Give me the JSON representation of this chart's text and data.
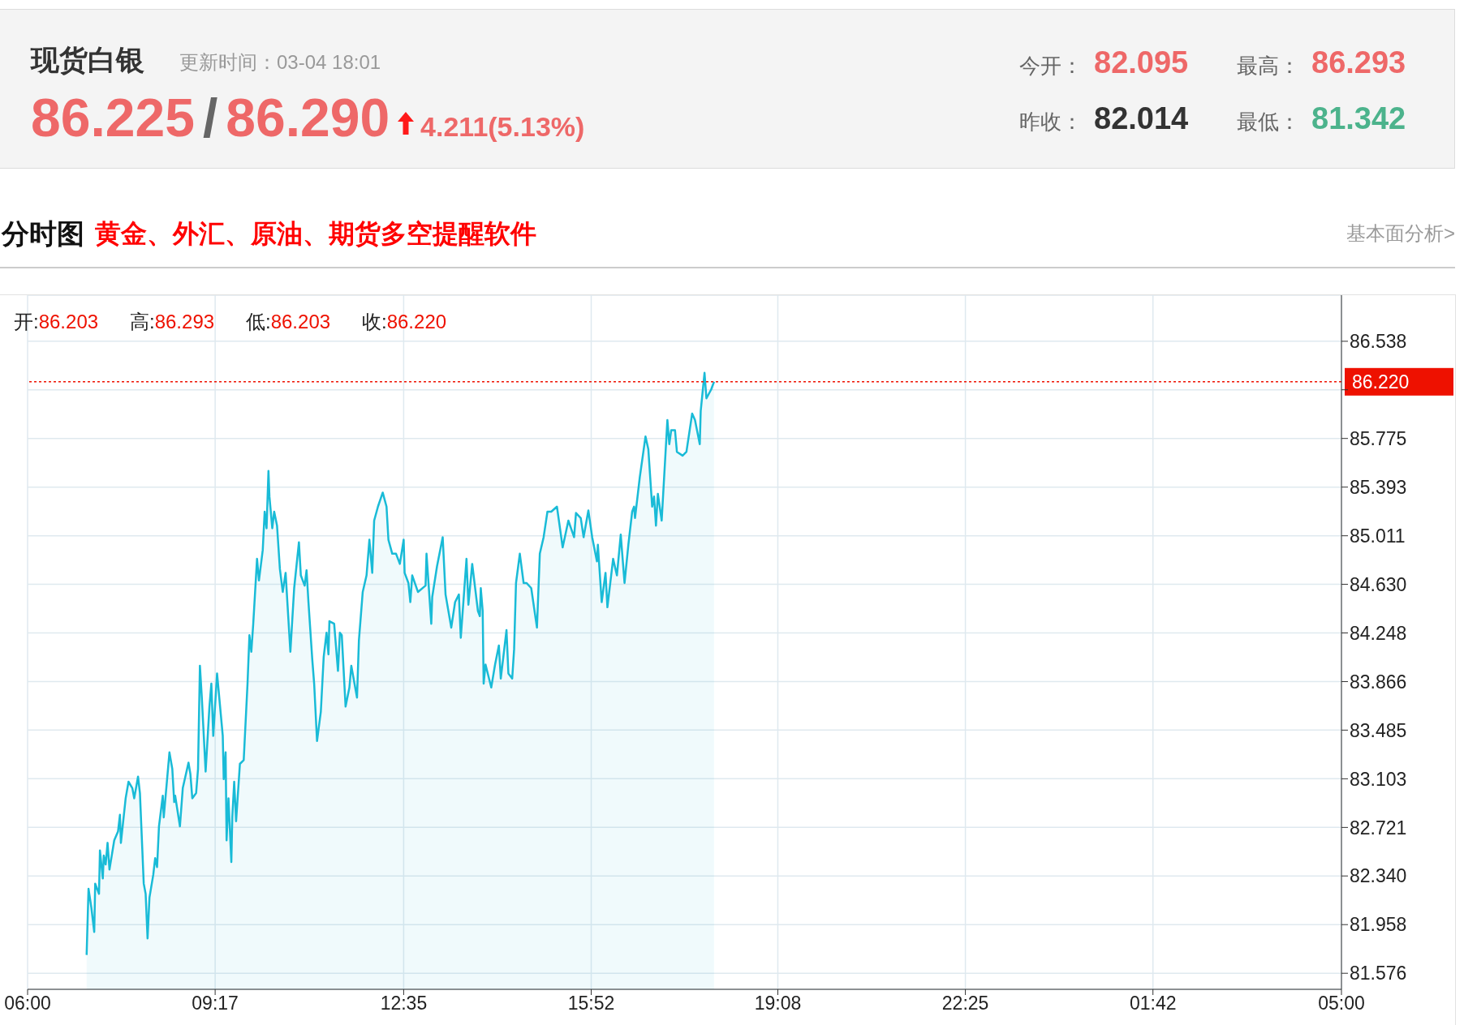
{
  "chart_data": [
    {
      "type": "other",
      "title": "现货白银",
      "subtitle": "更新时间：03-04 18:01",
      "annotations": [
        "86.225",
        "/",
        "86.290",
        "4.211(5.13%)",
        "今开：",
        "82.095",
        "昨收：",
        "82.014",
        "最高：",
        "86.293",
        "最低：",
        "81.342"
      ]
    },
    {
      "type": "area",
      "title": "分时图",
      "annotations": [
        "黄金、外汇、原油、期货多空提醒软件",
        "基本面分析>",
        "开:",
        "86.203",
        "高:",
        "86.293",
        "低:",
        "86.203",
        "收:",
        "86.220"
      ],
      "x": [
        "--03-04T07:02",
        "--03-04T07:04",
        "--03-04T07:07",
        "--03-04T07:10",
        "--03-04T07:11",
        "--03-04T07:15",
        "--03-04T07:16",
        "--03-04T07:19",
        "--03-04T07:20",
        "--03-04T07:22",
        "--03-04T07:24",
        "--03-04T07:26",
        "--03-04T07:31",
        "--03-04T07:35",
        "--03-04T07:37",
        "--03-04T07:38",
        "--03-04T07:43",
        "--03-04T07:46",
        "--03-04T07:50",
        "--03-04T07:52",
        "--03-04T07:56",
        "--03-04T07:58",
        "--03-04T08:02",
        "--03-04T08:04",
        "--03-04T08:06",
        "--03-04T08:08",
        "--03-04T08:12",
        "--03-04T08:14",
        "--03-04T08:16",
        "--03-04T08:18",
        "--03-04T08:22",
        "--03-04T08:23",
        "--03-04T08:29",
        "--03-04T08:32",
        "--03-04T08:34",
        "--03-04T08:35",
        "--03-04T08:40",
        "--03-04T08:43",
        "--03-04T08:49",
        "--03-04T08:51",
        "--03-04T08:53",
        "--03-04T08:57",
        "--03-04T08:59",
        "--03-04T09:01",
        "--03-04T09:03",
        "--03-04T09:07",
        "--03-04T09:11",
        "--03-04T09:13",
        "--03-04T09:15",
        "--03-04T09:19",
        "--03-04T09:25",
        "--03-04T09:26",
        "--03-04T09:28",
        "--03-04T09:29",
        "--03-04T09:31",
        "--03-04T09:34",
        "--03-04T09:35",
        "--03-04T09:37",
        "--03-04T09:39",
        "--03-04T09:43",
        "--03-04T09:47",
        "--03-04T09:51",
        "--03-04T09:53",
        "--03-04T09:55",
        "--03-04T09:57",
        "--03-04T10:01",
        "--03-04T10:03",
        "--03-04T10:07",
        "--03-04T10:09",
        "--03-04T10:11",
        "--03-04T10:13",
        "--03-04T10:14",
        "--03-04T10:17",
        "--03-04T10:19",
        "--03-04T10:22",
        "--03-04T10:25",
        "--03-04T10:28",
        "--03-04T10:31",
        "--03-04T10:36",
        "--03-04T10:40",
        "--03-04T10:45",
        "--03-04T10:47",
        "--03-04T10:51",
        "--03-04T10:53",
        "--03-04T10:55",
        "--03-04T10:59",
        "--03-04T11:01",
        "--03-04T11:04",
        "--03-04T11:08",
        "--03-04T11:11",
        "--03-04T11:14",
        "--03-04T11:16",
        "--03-04T11:17",
        "--03-04T11:22",
        "--03-04T11:26",
        "--03-04T11:28",
        "--03-04T11:30",
        "--03-04T11:34",
        "--03-04T11:38",
        "--03-04T11:40",
        "--03-04T11:46",
        "--03-04T11:48",
        "--03-04T11:52",
        "--03-04T11:56",
        "--03-04T11:59",
        "--03-04T12:02",
        "--03-04T12:04",
        "--03-04T12:08",
        "--03-04T12:13",
        "--03-04T12:17",
        "--03-04T12:19",
        "--03-04T12:23",
        "--03-04T12:27",
        "--03-04T12:31",
        "--03-04T12:35",
        "--03-04T12:36",
        "--03-04T12:40",
        "--03-04T12:42",
        "--03-04T12:44",
        "--03-04T12:50",
        "--03-04T12:58",
        "--03-04T12:59",
        "--03-04T13:04",
        "--03-04T13:05",
        "--03-04T13:10",
        "--03-04T13:16",
        "--03-04T13:19",
        "--03-04T13:25",
        "--03-04T13:29",
        "--03-04T13:33",
        "--03-04T13:35",
        "--03-04T13:41",
        "--03-04T13:43",
        "--03-04T13:47",
        "--03-04T13:53",
        "--03-04T13:55",
        "--03-04T13:56",
        "--03-04T13:58",
        "--03-04T13:59",
        "--03-04T14:01",
        "--03-04T14:07",
        "--03-04T14:11",
        "--03-04T14:15",
        "--03-04T14:17",
        "--03-04T14:23",
        "--03-04T14:25",
        "--03-04T14:29",
        "--03-04T14:31",
        "--03-04T14:33",
        "--03-04T14:37",
        "--03-04T14:41",
        "--03-04T14:44",
        "--03-04T14:49",
        "--03-04T14:55",
        "--03-04T14:58",
        "--03-04T15:02",
        "--03-04T15:06",
        "--03-04T15:10",
        "--03-04T15:16",
        "--03-04T15:22",
        "--03-04T15:28",
        "--03-04T15:34",
        "--03-04T15:36",
        "--03-04T15:41",
        "--03-04T15:44",
        "--03-04T15:49",
        "--03-04T15:53",
        "--03-04T15:58",
        "--03-04T15:59",
        "--03-04T16:03",
        "--03-04T16:07",
        "--03-04T16:09",
        "--03-04T16:15",
        "--03-04T16:19",
        "--03-04T16:23",
        "--03-04T16:27",
        "--03-04T16:31",
        "--03-04T16:35",
        "--03-04T16:37",
        "--03-04T16:38",
        "--03-04T16:43",
        "--03-04T16:49",
        "--03-04T16:52",
        "--03-04T16:56",
        "--03-04T16:58",
        "--03-04T17:00",
        "--03-04T17:02",
        "--03-04T17:06",
        "--03-04T17:12",
        "--03-04T17:14",
        "--03-04T17:16",
        "--03-04T17:20",
        "--03-04T17:22",
        "--03-04T17:28",
        "--03-04T17:32",
        "--03-04T17:38",
        "--03-04T17:41",
        "--03-04T17:46",
        "--03-04T17:47",
        "--03-04T17:51",
        "--03-04T17:53",
        "--03-04T17:58",
        "--03-04T18:01"
      ],
      "values": [
        81.72,
        82.24,
        82.09,
        81.9,
        82.28,
        82.2,
        82.54,
        82.32,
        82.5,
        82.43,
        82.6,
        82.39,
        82.62,
        82.69,
        82.82,
        82.6,
        82.95,
        83.08,
        83.03,
        82.95,
        83.12,
        82.99,
        82.28,
        82.2,
        81.85,
        82.17,
        82.35,
        82.48,
        82.41,
        82.73,
        82.97,
        82.8,
        83.31,
        83.18,
        82.92,
        82.97,
        82.73,
        83.03,
        83.23,
        83.14,
        82.95,
        82.99,
        83.18,
        83.99,
        83.74,
        83.16,
        83.67,
        83.85,
        83.44,
        83.93,
        83.44,
        83.1,
        83.31,
        82.62,
        82.95,
        82.45,
        82.8,
        83.08,
        82.77,
        83.22,
        83.25,
        83.85,
        84.23,
        84.1,
        84.32,
        84.83,
        84.66,
        84.9,
        85.2,
        85.07,
        85.52,
        85.32,
        85.07,
        85.2,
        85.09,
        84.75,
        84.57,
        84.72,
        84.1,
        84.6,
        84.96,
        84.7,
        84.62,
        84.74,
        84.49,
        84.04,
        83.85,
        83.4,
        83.63,
        84.06,
        84.25,
        84.08,
        84.34,
        84.32,
        83.95,
        84.25,
        84.23,
        83.67,
        83.82,
        83.99,
        83.74,
        84.19,
        84.57,
        84.7,
        84.98,
        84.72,
        85.13,
        85.24,
        85.35,
        85.24,
        84.98,
        84.87,
        84.87,
        84.79,
        84.98,
        84.72,
        84.64,
        84.49,
        84.7,
        84.57,
        84.62,
        84.87,
        84.32,
        84.53,
        84.77,
        85.0,
        84.55,
        84.29,
        84.49,
        84.55,
        84.21,
        84.83,
        84.47,
        84.79,
        84.42,
        84.38,
        84.6,
        84.42,
        83.85,
        84.0,
        83.82,
        84.0,
        84.15,
        83.89,
        84.27,
        83.93,
        83.89,
        84.12,
        84.64,
        84.87,
        84.64,
        84.64,
        84.6,
        84.29,
        84.87,
        85.0,
        85.2,
        85.2,
        85.24,
        84.92,
        85.13,
        85.0,
        85.19,
        85.15,
        85.0,
        85.21,
        85.0,
        84.81,
        84.94,
        84.49,
        84.72,
        84.45,
        84.83,
        84.7,
        85.02,
        84.64,
        84.94,
        85.2,
        85.24,
        85.15,
        85.47,
        85.79,
        85.69,
        85.24,
        85.32,
        85.09,
        85.34,
        85.13,
        85.92,
        85.73,
        85.84,
        85.84,
        85.67,
        85.64,
        85.67,
        85.97,
        85.92,
        85.73,
        85.99,
        86.29,
        86.09,
        86.16,
        86.22
      ],
      "color": "#19bbd7",
      "xlim": [
        "--03-04T06:00",
        "--03-05T05:00"
      ],
      "xticks": [
        {
          "value": "--03-04T06:00",
          "label": "06:00"
        },
        {
          "value": "--03-04T09:17",
          "label": "09:17"
        },
        {
          "value": "--03-04T12:35",
          "label": "12:35"
        },
        {
          "value": "--03-04T15:52",
          "label": "15:52"
        },
        {
          "value": "--03-04T19:08",
          "label": "19:08"
        },
        {
          "value": "--03-04T22:25",
          "label": "22:25"
        },
        {
          "value": "--03-05T01:42",
          "label": "01:42"
        },
        {
          "value": "--03-05T05:00",
          "label": "05:00"
        }
      ],
      "ylim": [
        81.45,
        86.9
      ],
      "yticks": [
        81.576,
        81.958,
        {
          "value": 82.34,
          "label": "82.340"
        },
        82.721,
        83.103,
        83.485,
        83.866,
        84.248,
        {
          "value": 84.63,
          "label": "84.630"
        },
        85.011,
        85.393,
        85.775,
        {
          "value": 86.157,
          "label": null
        },
        86.538
      ],
      "grid": true,
      "ref_lines": [
        {
          "axis": "y",
          "value": 86.22,
          "label": "86.220",
          "color": "#ee1100",
          "line_style": "dotted"
        }
      ]
    }
  ]
}
